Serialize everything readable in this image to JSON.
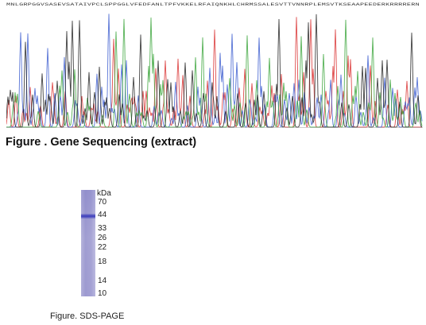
{
  "sequencing_figure": {
    "sequence": "MNLGRPGGVSASEVSATAIVPCLSPPGGLVFEDFANLTPFVKKELRFAIQNKHLCHRMSSALESVTTVNNRPLEMSVTKSEAAPEEDERKRRRRERN",
    "caption": "Figure . Gene Sequencing (extract)",
    "trace_colors": {
      "A": "#3aa53a",
      "C": "#3b5ccf",
      "G": "#222222",
      "T": "#d93030"
    }
  },
  "sds_page_figure": {
    "unit_label": "kDa",
    "markers": [
      {
        "label": "70"
      },
      {
        "label": "44"
      },
      {
        "label": "33"
      },
      {
        "label": "26"
      },
      {
        "label": "22"
      },
      {
        "label": "18"
      },
      {
        "label": "14"
      },
      {
        "label": "10"
      }
    ],
    "band_marker": "44",
    "caption": "Figure. SDS-PAGE"
  }
}
